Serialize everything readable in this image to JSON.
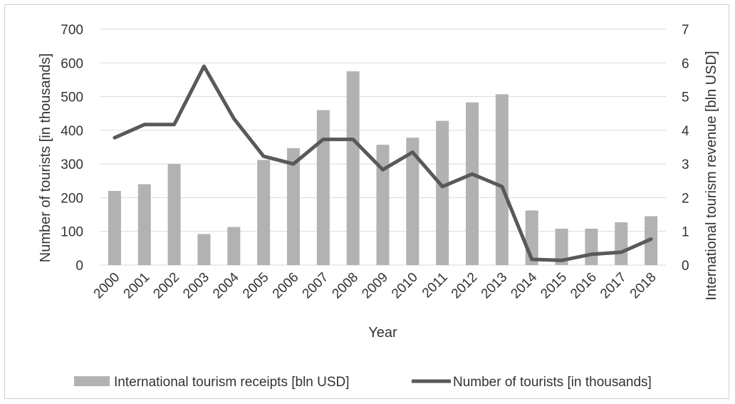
{
  "chart_data": {
    "type": "bar",
    "categories": [
      "2000",
      "2001",
      "2002",
      "2003",
      "2004",
      "2005",
      "2006",
      "2007",
      "2008",
      "2009",
      "2010",
      "2011",
      "2012",
      "2013",
      "2014",
      "2015",
      "2016",
      "2017",
      "2018"
    ],
    "series": [
      {
        "name": "International tourism receipts [bln USD]",
        "type": "bar",
        "axis": "right",
        "color": "#b2b2b2",
        "values": [
          2.2,
          2.4,
          3.0,
          0.92,
          1.13,
          3.12,
          3.47,
          4.6,
          5.75,
          3.57,
          3.78,
          4.28,
          4.83,
          5.07,
          1.62,
          1.08,
          1.08,
          1.27,
          1.45
        ]
      },
      {
        "name": "Number of tourists [in thousands]",
        "type": "line",
        "axis": "left",
        "color": "#595959",
        "values": [
          378,
          417,
          417,
          590,
          435,
          323,
          300,
          373,
          373,
          283,
          335,
          233,
          270,
          233,
          17,
          14,
          32,
          38,
          77
        ]
      }
    ],
    "xlabel": "Year",
    "ylabel": "Number of tourists [in thousands]",
    "y2label": "International tourism revenue [bln USD]",
    "ylim": [
      0,
      700
    ],
    "y2lim": [
      0,
      7
    ],
    "yticks": [
      "0",
      "100",
      "200",
      "300",
      "400",
      "500",
      "600",
      "700"
    ],
    "y2ticks": [
      "0",
      "1",
      "2",
      "3",
      "4",
      "5",
      "6",
      "7"
    ],
    "grid": true,
    "legend": "bottom"
  }
}
